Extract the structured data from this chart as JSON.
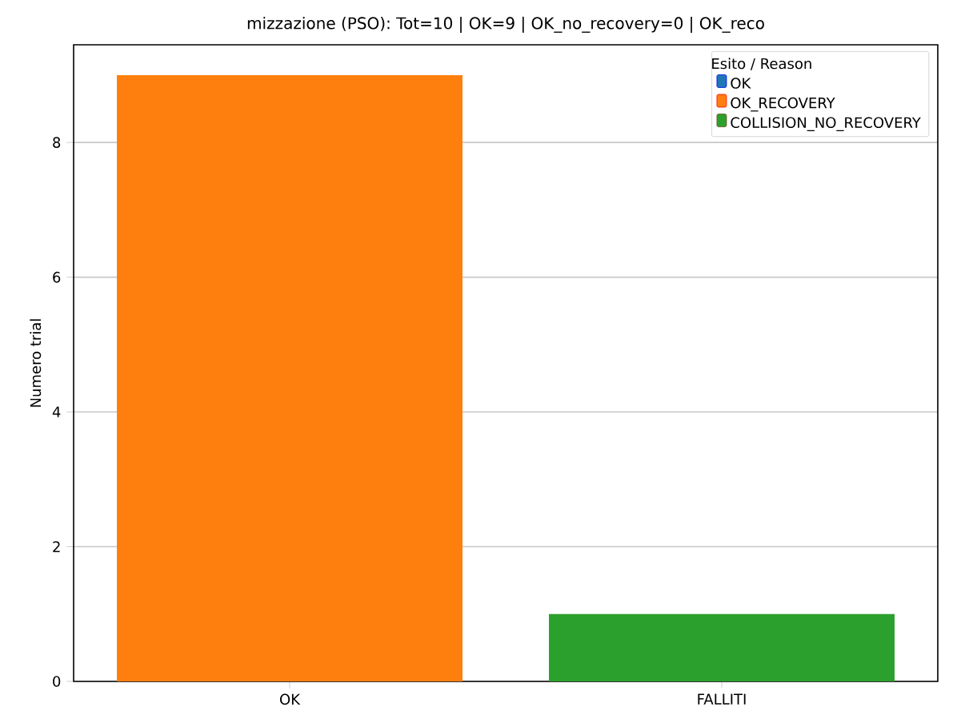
{
  "chart_data": {
    "type": "bar",
    "title": "mizzazione (PSO): Tot=10 | OK=9 | OK_no_recovery=0 | OK_reco",
    "ylabel": "Numero trial",
    "legend_title": "Esito / Reason",
    "categories": [
      "OK",
      "FALLITI"
    ],
    "stacked": true,
    "series": [
      {
        "name": "OK",
        "color": "#1f77b4",
        "values": [
          0,
          0
        ]
      },
      {
        "name": "OK_RECOVERY",
        "color": "#ff7f0e",
        "values": [
          9,
          0
        ]
      },
      {
        "name": "COLLISION_NO_RECOVERY",
        "color": "#2ca02c",
        "values": [
          0,
          1
        ]
      }
    ],
    "ylim": [
      0,
      9.45
    ],
    "yticks": [
      0,
      2,
      4,
      6,
      8
    ],
    "grid": "y",
    "legend": "top right"
  }
}
